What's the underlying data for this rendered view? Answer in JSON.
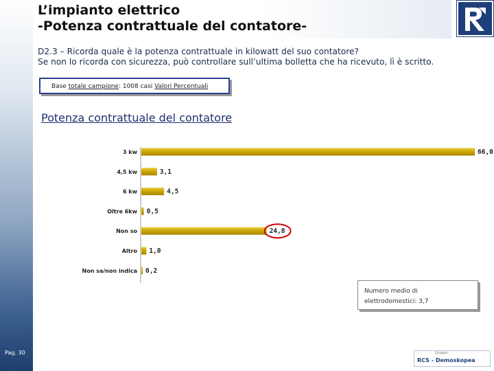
{
  "header": {
    "title_line1": "L’impianto elettrico",
    "title_line2": "-Potenza contrattuale del contatore-"
  },
  "question": {
    "line1": "D2.3 – Ricorda quale è la potenza contrattuale in kilowatt del suo contatore?",
    "line2": "Se non lo ricorda con sicurezza, può controllare sull’ultima bolletta che ha ricevuto, lì è scritto."
  },
  "base": {
    "label": "Base ",
    "totale": "totale campione",
    "count": ": 1008 casi ",
    "valori": "Valori Percentuali"
  },
  "note": {
    "line1": "Numero medio di",
    "line2": "elettrodomestici: 3,7"
  },
  "footer": {
    "page": "Pag. 30",
    "logo_small": "Gruppo",
    "logo_main": "RCS - Demoskopea"
  },
  "colors": {
    "bar": "#c9a400",
    "bar_light": "#e8cc3a",
    "highlight_circle": "#cc0000",
    "title_blue": "#1f2f6f"
  },
  "chart_data": {
    "type": "bar",
    "orientation": "horizontal",
    "title": "Potenza contrattuale del contatore",
    "categories": [
      "3 kw",
      "4,5 kw",
      "6 kw",
      "Oltre 6kw",
      "Non so",
      "Altro",
      "Non sa/non indica"
    ],
    "values": [
      66.0,
      3.1,
      4.5,
      0.5,
      24.8,
      1.0,
      0.2
    ],
    "value_labels": [
      "66,0",
      "3,1",
      "4,5",
      "0,5",
      "24,8",
      "1,0",
      "0,2"
    ],
    "highlighted": "Non so",
    "unit": "%",
    "xlim": [
      0,
      66
    ]
  }
}
